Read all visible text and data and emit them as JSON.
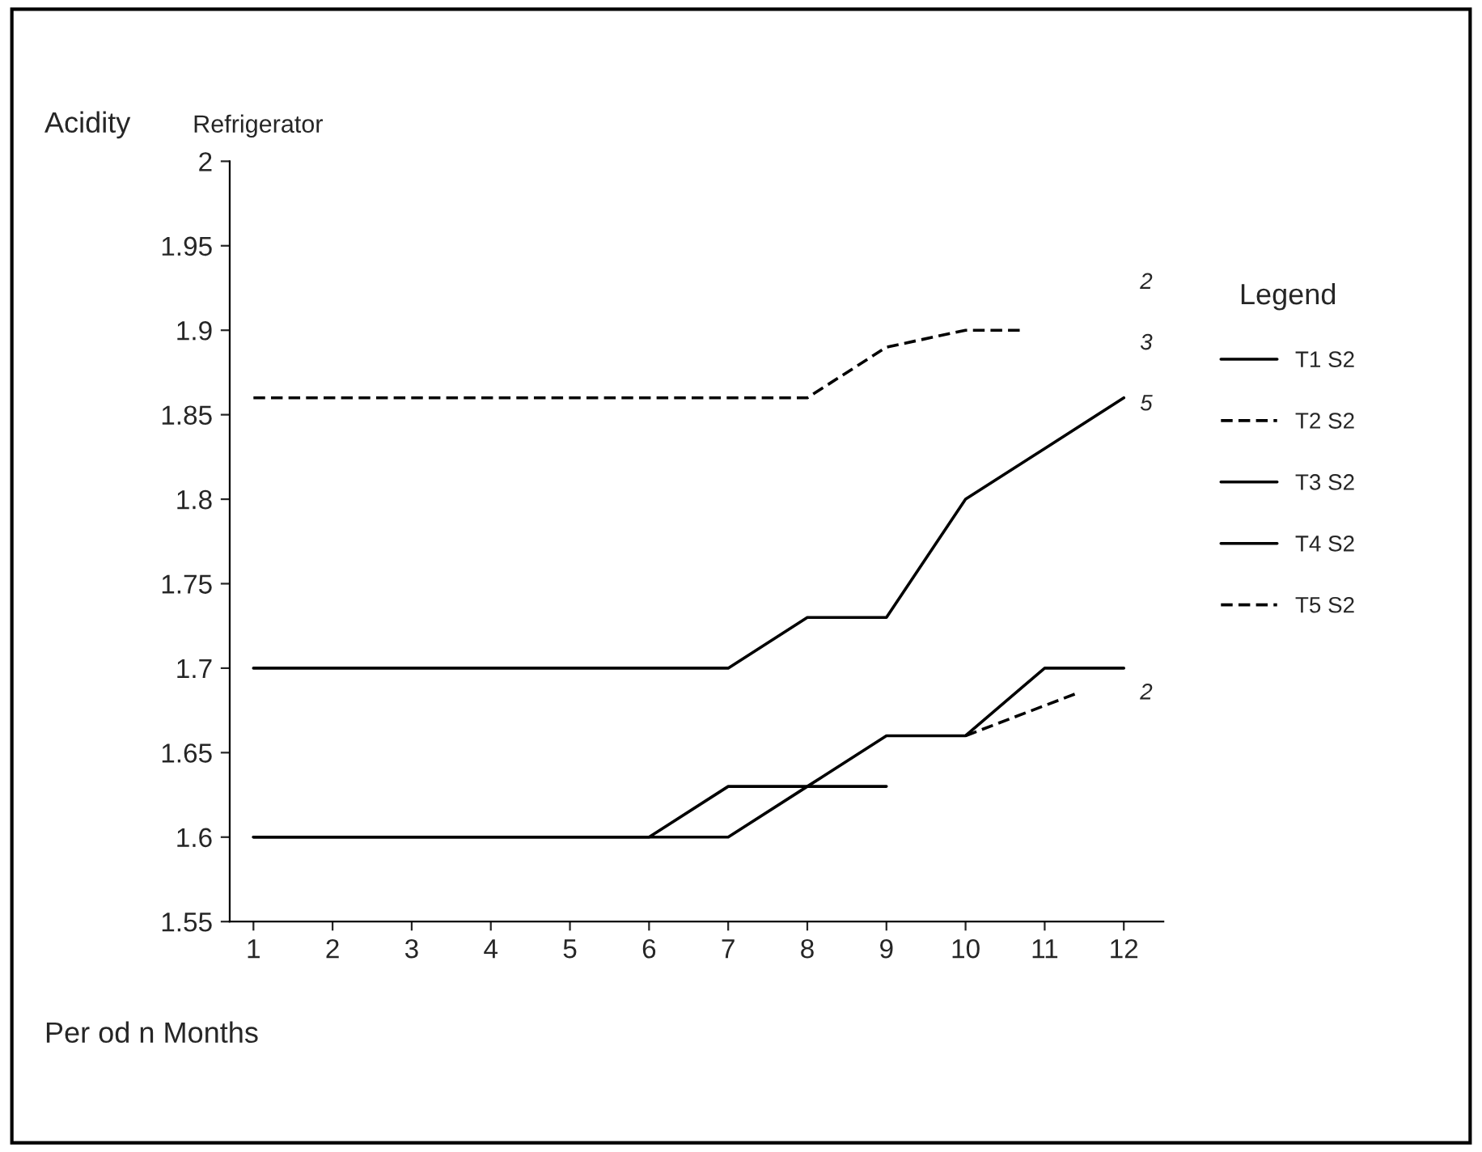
{
  "chart_data": {
    "type": "line",
    "title": "Refrigerator",
    "ylabel": "Acidity",
    "xlabel": "Per od n Months",
    "legend_title": "Legend",
    "x": [
      1,
      2,
      3,
      4,
      5,
      6,
      7,
      8,
      9,
      10,
      11,
      12
    ],
    "series": [
      {
        "name": "T1 S2",
        "color": "#000000",
        "line_style": "solid",
        "values": [
          1.7,
          1.7,
          1.7,
          1.7,
          1.7,
          1.7,
          1.7,
          1.73,
          1.73,
          1.8,
          1.83,
          1.86
        ]
      },
      {
        "name": "T2 S2",
        "color": "#000000",
        "line_style": "dashed",
        "x": [
          1,
          2,
          3,
          4,
          5,
          6,
          7,
          8,
          9,
          10,
          10.7
        ],
        "values": [
          1.86,
          1.86,
          1.86,
          1.86,
          1.86,
          1.86,
          1.86,
          1.86,
          1.89,
          1.9,
          1.9
        ]
      },
      {
        "name": "T3 S2",
        "color": "#000000",
        "line_style": "solid",
        "x": [
          1,
          2,
          3,
          4,
          5,
          6,
          7,
          8,
          9
        ],
        "values": [
          1.6,
          1.6,
          1.6,
          1.6,
          1.6,
          1.6,
          1.63,
          1.63,
          1.63
        ]
      },
      {
        "name": "T4 S2",
        "color": "#000000",
        "line_style": "solid",
        "values": [
          1.6,
          1.6,
          1.6,
          1.6,
          1.6,
          1.6,
          1.6,
          1.63,
          1.66,
          1.66,
          1.7,
          1.7
        ]
      },
      {
        "name": "T5 S2",
        "color": "#000000",
        "line_style": "dashed",
        "x": [
          10,
          11.4
        ],
        "values": [
          1.66,
          1.685
        ]
      }
    ],
    "xlim": [
      0.7,
      12.5
    ],
    "xticks": [
      1,
      2,
      3,
      4,
      5,
      6,
      7,
      8,
      9,
      10,
      11,
      12
    ],
    "ylim": [
      1.55,
      2
    ],
    "yticks": [
      1.55,
      1.6,
      1.65,
      1.7,
      1.75,
      1.8,
      1.85,
      1.9,
      1.95,
      2
    ],
    "annotations": [
      "2",
      "3",
      "5",
      "2"
    ],
    "legend": "right",
    "grid": false,
    "marker": "none"
  }
}
